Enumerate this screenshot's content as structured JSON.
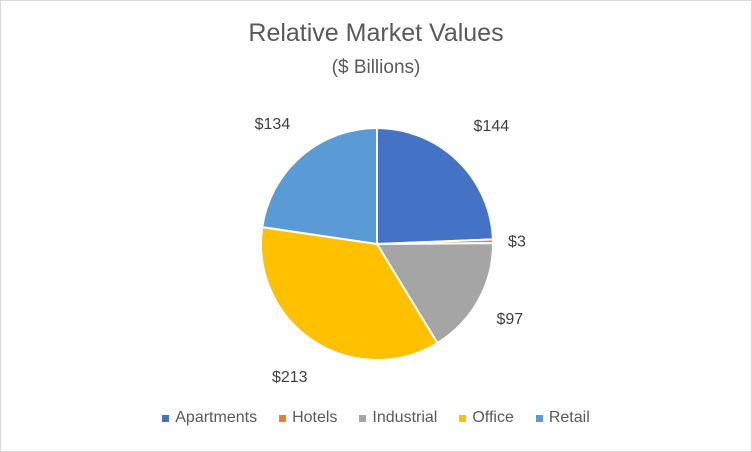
{
  "chart_data": {
    "type": "pie",
    "title": "Relative Market Values",
    "subtitle": "($ Billions)",
    "categories": [
      "Apartments",
      "Hotels",
      "Industrial",
      "Office",
      "Retail"
    ],
    "values": [
      144,
      3,
      97,
      213,
      134
    ],
    "data_labels": [
      "$144",
      "$3",
      "$97",
      "$213",
      "$134"
    ],
    "colors": [
      "#4472C4",
      "#ED7D31",
      "#A5A5A5",
      "#FFC000",
      "#5B9BD5"
    ],
    "legend_position": "bottom",
    "start_angle": "12 o'clock",
    "direction": "clockwise"
  }
}
